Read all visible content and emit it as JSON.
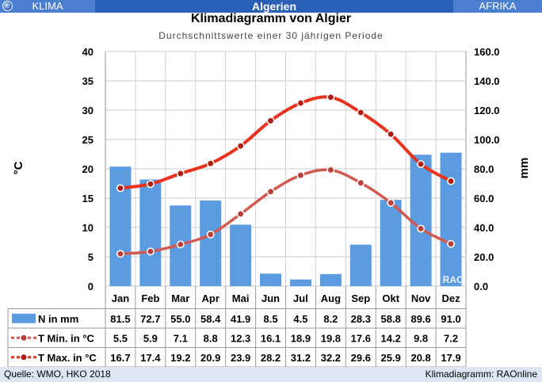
{
  "header": {
    "left": "KLIMA",
    "center": "Algerien",
    "right": "AFRIKA",
    "icon": "globe-icon"
  },
  "title": "Klimadiagramm von Algier",
  "subtitle": "Durchschnittswerte einer 30 jährigen Periode",
  "footer": {
    "source": "Quelle:  WMO, HKO 2018",
    "credit": "Klimadiagramm:  RAOnline"
  },
  "chart_data": {
    "type": "bar",
    "categories": [
      "Jan",
      "Feb",
      "Mar",
      "Apr",
      "Mai",
      "Jun",
      "Jul",
      "Aug",
      "Sep",
      "Okt",
      "Nov",
      "Dez"
    ],
    "y_left": {
      "label": "°C",
      "ticks": [
        "0",
        "5",
        "10",
        "15",
        "20",
        "25",
        "30",
        "35",
        "40"
      ],
      "range": [
        0,
        40
      ]
    },
    "y_right": {
      "label": "mm",
      "ticks": [
        "0.0",
        "20.0",
        "40.0",
        "60.0",
        "80.0",
        "100.0",
        "120.0",
        "140.0",
        "160.0"
      ],
      "range": [
        0,
        160
      ]
    },
    "watermark": "RAO",
    "grid": true,
    "series": [
      {
        "name": "N in mm",
        "kind": "bar",
        "axis": "right",
        "color": "#5b9be0",
        "values": [
          81.5,
          72.7,
          55.0,
          58.4,
          41.9,
          8.5,
          4.5,
          8.2,
          28.3,
          58.8,
          89.6,
          91.0
        ],
        "labels": [
          "81.5",
          "72.7",
          "55.0",
          "58.4",
          "41.9",
          "8.5",
          "4.5",
          "8.2",
          "28.3",
          "58.8",
          "89.6",
          "91.0"
        ]
      },
      {
        "name": "T Min. in °C",
        "kind": "line",
        "axis": "left",
        "color": "#d05a50",
        "values": [
          5.5,
          5.9,
          7.1,
          8.8,
          12.3,
          16.1,
          18.9,
          19.8,
          17.6,
          14.2,
          9.8,
          7.2
        ],
        "labels": [
          "5.5",
          "5.9",
          "7.1",
          "8.8",
          "12.3",
          "16.1",
          "18.9",
          "19.8",
          "17.6",
          "14.2",
          "9.8",
          "7.2"
        ]
      },
      {
        "name": "T Max. in °C",
        "kind": "line",
        "axis": "left",
        "color": "#e8321e",
        "values": [
          16.7,
          17.4,
          19.2,
          20.9,
          23.9,
          28.2,
          31.2,
          32.2,
          29.6,
          25.9,
          20.8,
          17.9
        ],
        "labels": [
          "16.7",
          "17.4",
          "19.2",
          "20.9",
          "23.9",
          "28.2",
          "31.2",
          "32.2",
          "29.6",
          "25.9",
          "20.8",
          "17.9"
        ]
      }
    ]
  }
}
